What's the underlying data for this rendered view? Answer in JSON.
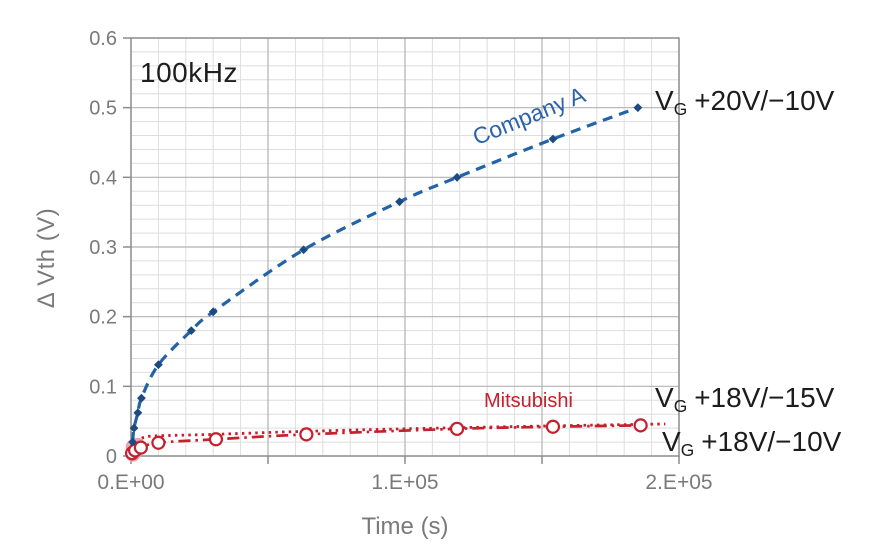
{
  "chart_data": {
    "type": "line",
    "xlabel": "Time (s)",
    "ylabel": "Δ Vth (V)",
    "xlim": [
      0,
      200000
    ],
    "ylim": [
      0,
      0.6
    ],
    "grid": {
      "x_minor_step": 10000,
      "x_major_step": 50000,
      "y_minor_step": 0.02,
      "y_major_step": 0.1,
      "minor_color": "#dedede",
      "major_color": "#b2b2b2",
      "border_color": "#8c8c8c",
      "tick_color": "#8c8c8c"
    },
    "x_tick_labels": [
      {
        "value": 0,
        "label": "0.E+00"
      },
      {
        "value": 100000,
        "label": "1.E+05"
      },
      {
        "value": 200000,
        "label": "2.E+05"
      }
    ],
    "y_tick_labels": [
      {
        "value": 0,
        "label": "0"
      },
      {
        "value": 0.1,
        "label": "0.1"
      },
      {
        "value": 0.2,
        "label": "0.2"
      },
      {
        "value": 0.3,
        "label": "0.3"
      },
      {
        "value": 0.4,
        "label": "0.4"
      },
      {
        "value": 0.5,
        "label": "0.5"
      },
      {
        "value": 0.6,
        "label": "0.6"
      }
    ],
    "tick_label_color": "#7a7a7a",
    "series": [
      {
        "id": "mitsubishi_dotted",
        "label": "Mitsubishi",
        "bias_label": "VG +18V/-15V",
        "color": "#c5202e",
        "line_style": "dotted",
        "marker": "none",
        "points": [
          [
            300,
            0.002
          ],
          [
            1200,
            0.015
          ],
          [
            2500,
            0.022
          ],
          [
            5000,
            0.027
          ],
          [
            10000,
            0.029
          ],
          [
            30000,
            0.031
          ],
          [
            60000,
            0.035
          ],
          [
            100000,
            0.039
          ],
          [
            150000,
            0.043
          ],
          [
            195000,
            0.046
          ]
        ]
      },
      {
        "id": "mitsubishi_dashdot",
        "label": "Mitsubishi",
        "bias_label": "VG +18V/-10V",
        "color": "#c5202e",
        "marker_color": "#c5202e",
        "line_style": "dash-dot",
        "marker": "circle-open",
        "points": [
          [
            400,
            0.004
          ],
          [
            1500,
            0.008
          ],
          [
            3600,
            0.012
          ],
          [
            10000,
            0.019
          ],
          [
            31000,
            0.024
          ],
          [
            64000,
            0.031
          ],
          [
            119000,
            0.039
          ],
          [
            154000,
            0.042
          ],
          [
            186000,
            0.044
          ]
        ],
        "faded_origin_markers": [
          [
            700,
            0.003
          ],
          [
            1500,
            0.009
          ],
          [
            2400,
            0.015
          ],
          [
            900,
            0.013
          ]
        ]
      },
      {
        "id": "company_a",
        "label": "Company A",
        "bias_label": "VG +20V/-10V",
        "color": "#2263a7",
        "marker_color": "#1d4a80",
        "line_style": "dashed",
        "marker": "diamond",
        "points": [
          [
            600,
            0.02
          ],
          [
            1100,
            0.04
          ],
          [
            2500,
            0.062
          ],
          [
            3800,
            0.083
          ],
          [
            10000,
            0.131
          ],
          [
            22000,
            0.18
          ],
          [
            30000,
            0.207
          ],
          [
            63000,
            0.296
          ],
          [
            98000,
            0.365
          ],
          [
            119000,
            0.4
          ],
          [
            154000,
            0.455
          ],
          [
            185000,
            0.5
          ]
        ]
      }
    ],
    "annotations": {
      "frequency": "100kHz",
      "company_a": "Company A",
      "mitsubishi": "Mitsubishi",
      "vg_labels": [
        {
          "main": "V",
          "sub": "G",
          "bias": "+20V/−10V"
        },
        {
          "main": "V",
          "sub": "G",
          "bias": "+18V/−15V"
        },
        {
          "main": "V",
          "sub": "G",
          "bias": "+18V/−10V"
        }
      ]
    }
  }
}
